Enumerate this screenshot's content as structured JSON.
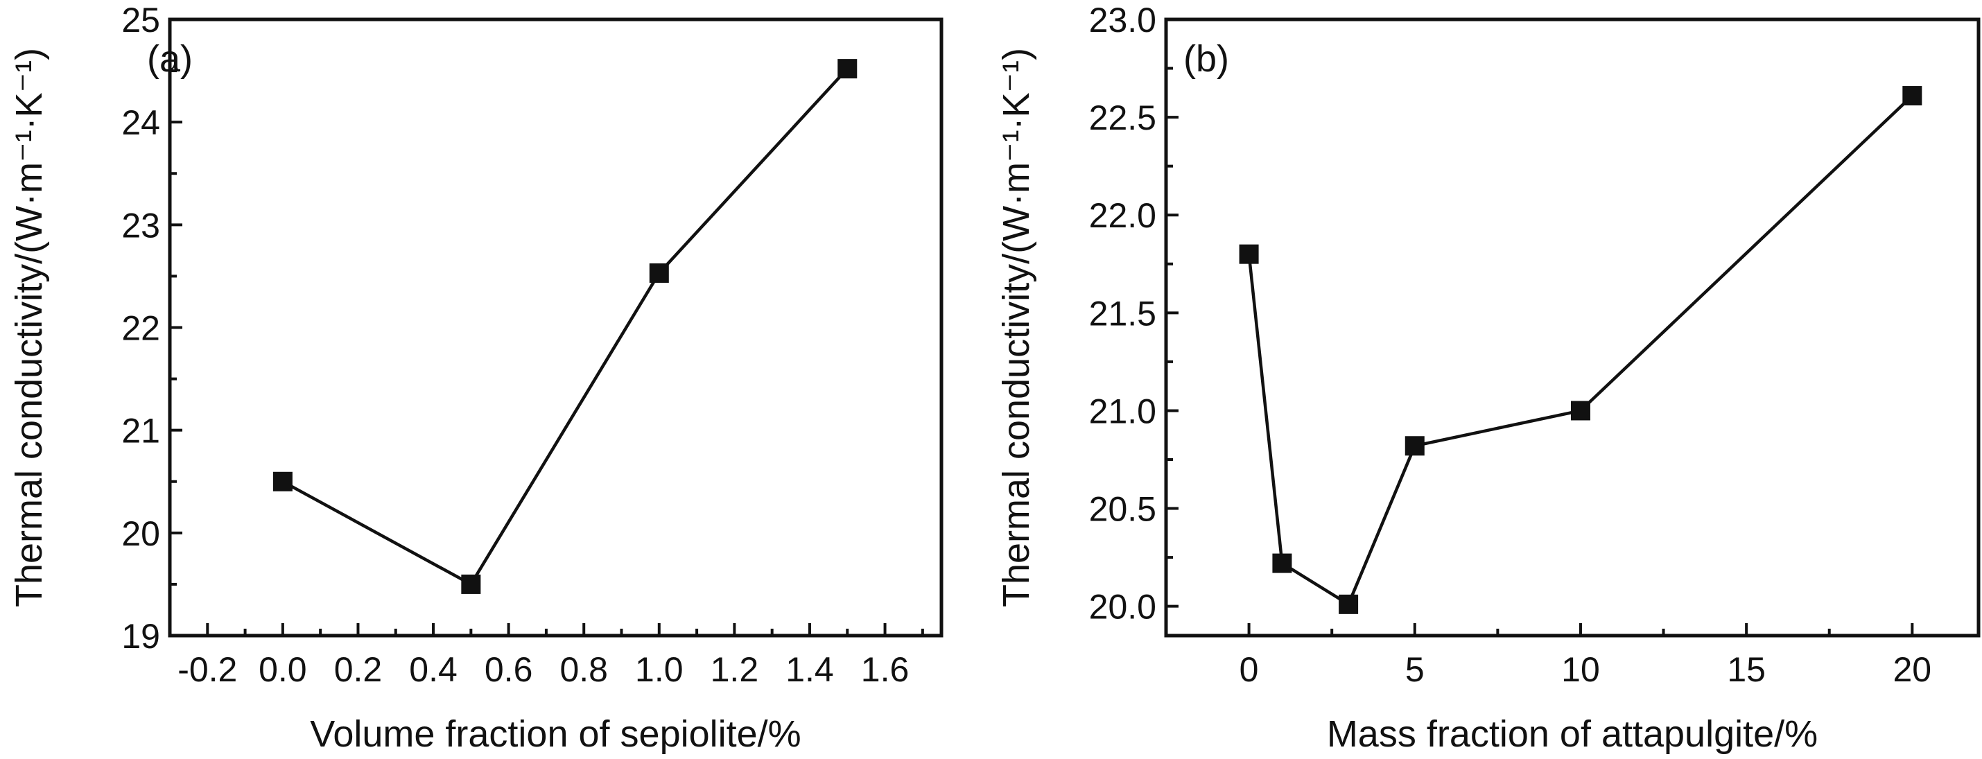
{
  "chart_data": [
    {
      "type": "line",
      "panel_label": "(a)",
      "xlabel": "Volume fraction of sepiolite/%",
      "ylabel": "Thermal conductivity/(W·m⁻¹·K⁻¹)",
      "xlim": [
        -0.3,
        1.75
      ],
      "ylim": [
        19,
        25
      ],
      "xticks": [
        -0.2,
        0.0,
        0.2,
        0.4,
        0.6,
        0.8,
        1.0,
        1.2,
        1.4,
        1.6
      ],
      "xtick_labels": [
        "-0.2",
        "0.0",
        "0.2",
        "0.4",
        "0.6",
        "0.8",
        "1.0",
        "1.2",
        "1.4",
        "1.6"
      ],
      "xminor_ticks": [
        -0.1,
        0.1,
        0.3,
        0.5,
        0.7,
        0.9,
        1.1,
        1.3,
        1.5,
        1.7
      ],
      "yticks": [
        19,
        20,
        21,
        22,
        23,
        24,
        25
      ],
      "ytick_labels": [
        "19",
        "20",
        "21",
        "22",
        "23",
        "24",
        "25"
      ],
      "yminor_ticks": [
        19.5,
        20.5,
        21.5,
        22.5,
        23.5,
        24.5
      ],
      "series": [
        {
          "x": [
            0.0,
            0.5,
            1.0,
            1.5
          ],
          "y": [
            20.5,
            19.5,
            22.53,
            24.52
          ],
          "marker": "square",
          "color": "#111111"
        }
      ],
      "grid": false
    },
    {
      "type": "line",
      "panel_label": "(b)",
      "xlabel": "Mass fraction of attapulgite/%",
      "ylabel": "Thermal conductivity/(W·m⁻¹·K⁻¹)",
      "xlim": [
        -2.5,
        22
      ],
      "ylim": [
        19.85,
        23.0
      ],
      "xticks": [
        0,
        5,
        10,
        15,
        20
      ],
      "xtick_labels": [
        "0",
        "5",
        "10",
        "15",
        "20"
      ],
      "xminor_ticks": [
        -2.5,
        2.5,
        7.5,
        12.5,
        17.5
      ],
      "yticks": [
        20.0,
        20.5,
        21.0,
        21.5,
        22.0,
        22.5,
        23.0
      ],
      "ytick_labels": [
        "20.0",
        "20.5",
        "21.0",
        "21.5",
        "22.0",
        "22.5",
        "23.0"
      ],
      "yminor_ticks": [
        20.25,
        20.75,
        21.25,
        21.75,
        22.25,
        22.75
      ],
      "series": [
        {
          "x": [
            0,
            1,
            3,
            5,
            10,
            20
          ],
          "y": [
            21.8,
            20.22,
            20.01,
            20.82,
            21.0,
            22.61
          ],
          "marker": "square",
          "color": "#111111"
        }
      ],
      "grid": false
    }
  ]
}
